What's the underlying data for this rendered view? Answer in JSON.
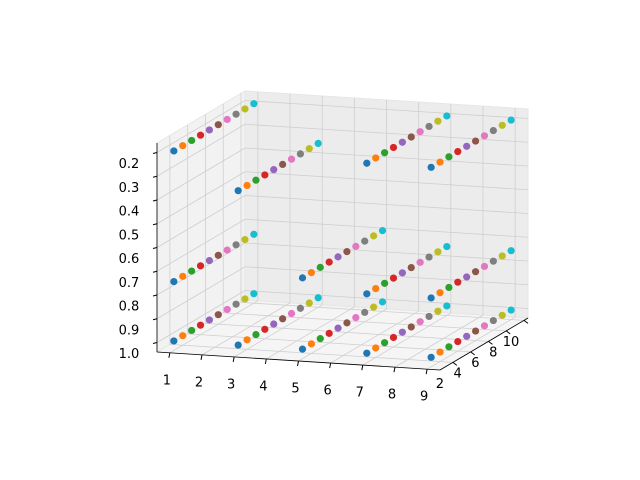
{
  "chart_data": {
    "type": "scatter3d",
    "xlim": [
      0.6,
      9.4
    ],
    "ylim": [
      0.55,
      10.45
    ],
    "zlim": [
      0.16,
      1.04
    ],
    "z_inverted": true,
    "xticks": [
      1,
      2,
      3,
      4,
      5,
      6,
      7,
      8,
      9
    ],
    "yticks": [
      2,
      4,
      6,
      8,
      10
    ],
    "zticks": [
      0.2,
      0.3,
      0.4,
      0.5,
      0.6,
      0.7,
      0.8,
      0.9,
      {
        "value": 1,
        "label": "1.0"
      }
    ],
    "grid": true,
    "point_colors": [
      "#1f77b4",
      "#ff7f0e",
      "#2ca02c",
      "#d62728",
      "#9467bd",
      "#8c564b",
      "#e377c2",
      "#7f7f7f",
      "#bcbd22",
      "#17becf"
    ],
    "series": [
      {
        "x": [
          1,
          1,
          1,
          1,
          1,
          1,
          1,
          1,
          1,
          1
        ],
        "y": [
          1,
          2,
          3,
          4,
          5,
          6,
          7,
          8,
          9,
          10
        ],
        "values": [
          0.2,
          0.2,
          0.2,
          0.2,
          0.2,
          0.2,
          0.2,
          0.2,
          0.2,
          0.2
        ]
      },
      {
        "x": [
          1,
          1,
          1,
          1,
          1,
          1,
          1,
          1,
          1,
          1
        ],
        "y": [
          1,
          2,
          3,
          4,
          5,
          6,
          7,
          8,
          9,
          10
        ],
        "values": [
          0.75,
          0.75,
          0.75,
          0.75,
          0.75,
          0.75,
          0.75,
          0.75,
          0.75,
          0.75
        ]
      },
      {
        "x": [
          1,
          1,
          1,
          1,
          1,
          1,
          1,
          1,
          1,
          1
        ],
        "y": [
          1,
          2,
          3,
          4,
          5,
          6,
          7,
          8,
          9,
          10
        ],
        "values": [
          1.0,
          1.0,
          1.0,
          1.0,
          1.0,
          1.0,
          1.0,
          1.0,
          1.0,
          1.0
        ]
      },
      {
        "x": [
          3,
          3,
          3,
          3,
          3,
          3,
          3,
          3,
          3,
          3
        ],
        "y": [
          1,
          2,
          3,
          4,
          5,
          6,
          7,
          8,
          9,
          10
        ],
        "values": [
          0.35,
          0.35,
          0.35,
          0.35,
          0.35,
          0.35,
          0.35,
          0.35,
          0.35,
          0.35
        ]
      },
      {
        "x": [
          3,
          3,
          3,
          3,
          3,
          3,
          3,
          3,
          3,
          3
        ],
        "y": [
          1,
          2,
          3,
          4,
          5,
          6,
          7,
          8,
          9,
          10
        ],
        "values": [
          1.0,
          1.0,
          1.0,
          1.0,
          1.0,
          1.0,
          1.0,
          1.0,
          1.0,
          1.0
        ]
      },
      {
        "x": [
          5,
          5,
          5,
          5,
          5,
          5,
          5,
          5,
          5,
          5
        ],
        "y": [
          1,
          2,
          3,
          4,
          5,
          6,
          7,
          8,
          9,
          10
        ],
        "values": [
          0.7,
          0.7,
          0.7,
          0.7,
          0.7,
          0.7,
          0.7,
          0.7,
          0.7,
          0.7
        ]
      },
      {
        "x": [
          5,
          5,
          5,
          5,
          5,
          5,
          5,
          5,
          5,
          5
        ],
        "y": [
          1,
          2,
          3,
          4,
          5,
          6,
          7,
          8,
          9,
          10
        ],
        "values": [
          1.0,
          1.0,
          1.0,
          1.0,
          1.0,
          1.0,
          1.0,
          1.0,
          1.0,
          1.0
        ]
      },
      {
        "x": [
          7,
          7,
          7,
          7,
          7,
          7,
          7,
          7,
          7,
          7
        ],
        "y": [
          1,
          2,
          3,
          4,
          5,
          6,
          7,
          8,
          9,
          10
        ],
        "values": [
          0.2,
          0.2,
          0.2,
          0.2,
          0.2,
          0.2,
          0.2,
          0.2,
          0.2,
          0.2
        ]
      },
      {
        "x": [
          7,
          7,
          7,
          7,
          7,
          7,
          7,
          7,
          7,
          7
        ],
        "y": [
          1,
          2,
          3,
          4,
          5,
          6,
          7,
          8,
          9,
          10
        ],
        "values": [
          0.75,
          0.75,
          0.75,
          0.75,
          0.75,
          0.75,
          0.75,
          0.75,
          0.75,
          0.75
        ]
      },
      {
        "x": [
          7,
          7,
          7,
          7,
          7,
          7,
          7,
          7,
          7,
          7
        ],
        "y": [
          1,
          2,
          3,
          4,
          5,
          6,
          7,
          8,
          9,
          10
        ],
        "values": [
          1.0,
          1.0,
          1.0,
          1.0,
          1.0,
          1.0,
          1.0,
          1.0,
          1.0,
          1.0
        ]
      },
      {
        "x": [
          9,
          9,
          9,
          9,
          9,
          9,
          9,
          9,
          9,
          9
        ],
        "y": [
          1,
          2,
          3,
          4,
          5,
          6,
          7,
          8,
          9,
          10
        ],
        "values": [
          0.2,
          0.2,
          0.2,
          0.2,
          0.2,
          0.2,
          0.2,
          0.2,
          0.2,
          0.2
        ]
      },
      {
        "x": [
          9,
          9,
          9,
          9,
          9,
          9,
          9,
          9,
          9,
          9
        ],
        "y": [
          1,
          2,
          3,
          4,
          5,
          6,
          7,
          8,
          9,
          10
        ],
        "values": [
          0.75,
          0.75,
          0.75,
          0.75,
          0.75,
          0.75,
          0.75,
          0.75,
          0.75,
          0.75
        ]
      },
      {
        "x": [
          9,
          9,
          9,
          9,
          9,
          9,
          9,
          9,
          9,
          9
        ],
        "y": [
          1,
          2,
          3,
          4,
          5,
          6,
          7,
          8,
          9,
          10
        ],
        "values": [
          1.0,
          1.0,
          1.0,
          1.0,
          1.0,
          1.0,
          1.0,
          1.0,
          1.0,
          1.0
        ]
      }
    ]
  }
}
